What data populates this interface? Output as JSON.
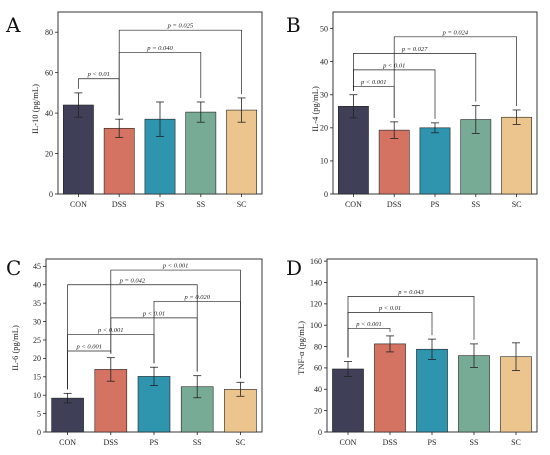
{
  "colors": [
    "#3f4058",
    "#d47361",
    "#2f94ad",
    "#78ab96",
    "#ebc48e"
  ],
  "chart_data": [
    {
      "type": "bar",
      "panel": "A",
      "categories": [
        "CON",
        "DSS",
        "PS",
        "SS",
        "SC"
      ],
      "values": [
        44,
        32.5,
        37,
        40.5,
        41.5
      ],
      "errors": [
        6,
        4.5,
        8.5,
        5,
        6
      ],
      "ylabel": "IL-10 (pg/mL)",
      "ylim": [
        0,
        90
      ],
      "yticks": [
        0,
        20,
        40,
        60,
        80
      ],
      "yticks_labels": [
        "0",
        "20",
        "40",
        "60",
        "80"
      ],
      "comparisons": [
        {
          "from": 0,
          "to": 1,
          "y": 57,
          "label": "p < 0.01"
        },
        {
          "from": 1,
          "to": 3,
          "y": 70,
          "label": "p = 0.040"
        },
        {
          "from": 1,
          "to": 4,
          "y": 81,
          "label": "p = 0.025"
        }
      ]
    },
    {
      "type": "bar",
      "panel": "B",
      "categories": [
        "CON",
        "DSS",
        "PS",
        "SS",
        "SC"
      ],
      "values": [
        26.5,
        19.3,
        20,
        22.5,
        23.2
      ],
      "errors": [
        3.5,
        2.5,
        1.5,
        4.2,
        2.2
      ],
      "ylabel": "IL-4 (pg/mL)",
      "ylim": [
        0,
        55
      ],
      "yticks": [
        0,
        10,
        20,
        30,
        40,
        50
      ],
      "yticks_labels": [
        "0",
        "10",
        "20",
        "30",
        "40",
        "50"
      ],
      "comparisons": [
        {
          "from": 0,
          "to": 1,
          "y": 32.5,
          "label": "p < 0.001"
        },
        {
          "from": 0,
          "to": 2,
          "y": 37.5,
          "label": "p < 0.01"
        },
        {
          "from": 0,
          "to": 3,
          "y": 42.5,
          "label": "p = 0.027"
        },
        {
          "from": 1,
          "to": 4,
          "y": 47.5,
          "label": "p = 0.024"
        }
      ]
    },
    {
      "type": "bar",
      "panel": "C",
      "categories": [
        "CON",
        "DSS",
        "PS",
        "SS",
        "SC"
      ],
      "values": [
        9.2,
        17,
        15.1,
        12.3,
        11.6
      ],
      "errors": [
        1.3,
        3.2,
        2.5,
        3,
        1.9
      ],
      "ylabel": "IL-6 (pg/mL)",
      "ylim": [
        0,
        47
      ],
      "yticks": [
        0,
        5,
        10,
        15,
        20,
        25,
        30,
        35,
        40,
        45
      ],
      "yticks_labels": [
        "0",
        "5",
        "10",
        "15",
        "20",
        "25",
        "30",
        "35",
        "40",
        "45"
      ],
      "comparisons": [
        {
          "from": 0,
          "to": 1,
          "y": 22,
          "label": "p < 0.001"
        },
        {
          "from": 0,
          "to": 2,
          "y": 26.5,
          "label": "p < 0.001"
        },
        {
          "from": 1,
          "to": 3,
          "y": 31,
          "label": "p < 0.01"
        },
        {
          "from": 2,
          "to": 4,
          "y": 35.5,
          "label": "p = 0.020"
        },
        {
          "from": 0,
          "to": 3,
          "y": 40,
          "label": "p = 0.042"
        },
        {
          "from": 1,
          "to": 4,
          "y": 44,
          "label": "p < 0.001"
        }
      ]
    },
    {
      "type": "bar",
      "panel": "D",
      "categories": [
        "CON",
        "DSS",
        "PS",
        "SS",
        "SC"
      ],
      "values": [
        59,
        82.5,
        77.5,
        71.5,
        70.5
      ],
      "errors": [
        7,
        7.5,
        9.5,
        11,
        13
      ],
      "ylabel": "TNF-α (pg/mL)",
      "ylim": [
        0,
        162
      ],
      "yticks": [
        0,
        20,
        40,
        60,
        80,
        100,
        120,
        140,
        160
      ],
      "yticks_labels": [
        "0",
        "20",
        "40",
        "60",
        "80",
        "100",
        "120",
        "140",
        "160"
      ],
      "comparisons": [
        {
          "from": 0,
          "to": 1,
          "y": 97,
          "label": "p < 0.001"
        },
        {
          "from": 0,
          "to": 2,
          "y": 112,
          "label": "p < 0.01"
        },
        {
          "from": 0,
          "to": 3,
          "y": 127,
          "label": "p = 0.043"
        }
      ]
    }
  ]
}
